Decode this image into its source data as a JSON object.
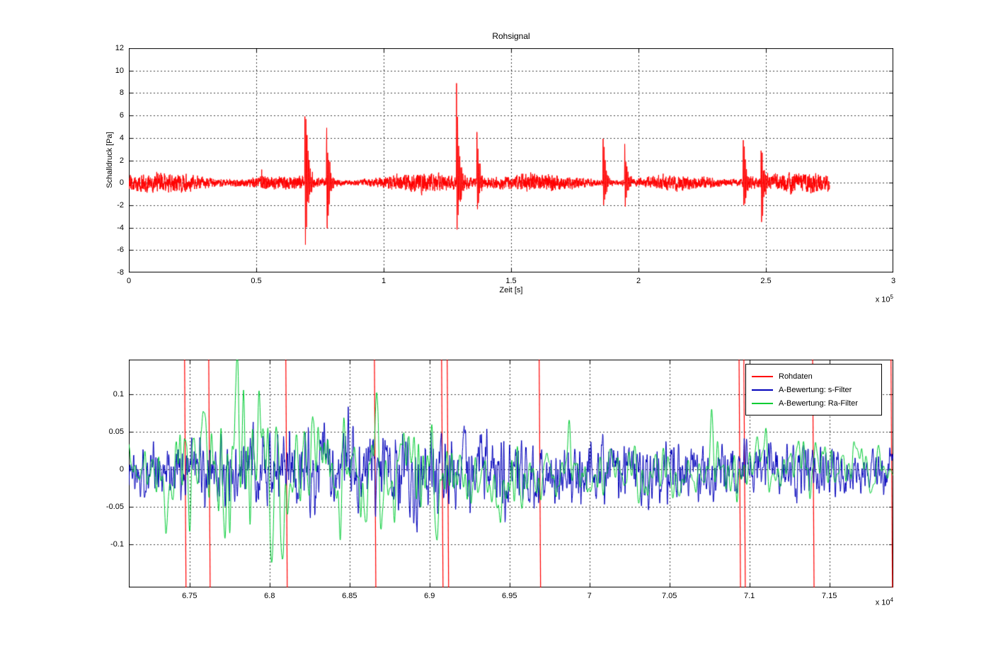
{
  "figure": {
    "background": "#ffffff"
  },
  "chart_data": [
    {
      "type": "line",
      "title": "Rohsignal",
      "xlabel": "Zeit [s]",
      "ylabel": "Schalldruck [Pa]",
      "x_scale_base": "x 10",
      "x_scale_exp": "5",
      "xlim": [
        0,
        300000
      ],
      "ylim": [
        -8,
        12
      ],
      "xticks": [
        0,
        50000,
        100000,
        150000,
        200000,
        250000,
        300000
      ],
      "xtick_labels": [
        "0",
        "0.5",
        "1",
        "1.5",
        "2",
        "2.5",
        "3"
      ],
      "yticks": [
        -8,
        -6,
        -4,
        -2,
        0,
        2,
        4,
        6,
        8,
        10,
        12
      ],
      "ytick_labels": [
        "-8",
        "-6",
        "-4",
        "-2",
        "0",
        "2",
        "4",
        "6",
        "8",
        "10",
        "12"
      ],
      "grid": true,
      "series": [
        {
          "name": "Rohsignal",
          "color": "#ff0000",
          "x_start": 0,
          "x_end": 275000,
          "noise_amplitude": 0.35,
          "bursts": [
            {
              "x": 52000,
              "pos": 1.2,
              "neg": 1.1,
              "tau": 900,
              "period": 450
            },
            {
              "x": 69000,
              "pos": 10.2,
              "neg": 7.8,
              "tau": 1100,
              "period": 420
            },
            {
              "x": 77500,
              "pos": 6.3,
              "neg": 6.2,
              "tau": 1000,
              "period": 430
            },
            {
              "x": 128500,
              "pos": 9.5,
              "neg": 6.7,
              "tau": 1100,
              "period": 420
            },
            {
              "x": 136500,
              "pos": 5.6,
              "neg": 4.0,
              "tau": 1000,
              "period": 430
            },
            {
              "x": 186000,
              "pos": 5.5,
              "neg": 3.9,
              "tau": 1000,
              "period": 430
            },
            {
              "x": 194500,
              "pos": 4.3,
              "neg": 3.6,
              "tau": 950,
              "period": 430
            },
            {
              "x": 241000,
              "pos": 5.1,
              "neg": 4.3,
              "tau": 1000,
              "period": 430
            },
            {
              "x": 248000,
              "pos": 4.2,
              "neg": 4.5,
              "tau": 1100,
              "period": 430
            }
          ]
        }
      ]
    },
    {
      "type": "line",
      "title": "",
      "xlabel": "",
      "ylabel": "",
      "x_scale_base": "x 10",
      "x_scale_exp": "4",
      "xlim": [
        67120,
        71900
      ],
      "ylim": [
        -0.158,
        0.146
      ],
      "xticks": [
        67500,
        68000,
        68500,
        69000,
        69500,
        70000,
        70500,
        71000,
        71500
      ],
      "xtick_labels": [
        "6.75",
        "6.8",
        "6.85",
        "6.9",
        "6.95",
        "7",
        "7.05",
        "7.1",
        "7.15"
      ],
      "yticks": [
        -0.1,
        -0.05,
        0,
        0.05,
        0.1
      ],
      "ytick_labels": [
        "-0.1",
        "-0.05",
        "0",
        "0.05",
        "0.1"
      ],
      "grid": true,
      "legend_position": "top-right",
      "series": [
        {
          "name": "Rohdaten",
          "color": "#ff0000",
          "style": "clipped-spikes",
          "spike_x": [
            67473,
            67624,
            68106,
            68660,
            69080,
            69115,
            69690,
            70940,
            70970,
            71400,
            71890
          ]
        },
        {
          "name": "A-Bewertung: s-Filter",
          "color": "#0000bb",
          "style": "noise",
          "seed": 1337,
          "smooth_window": 3,
          "smooth_passes": 2,
          "envelope": [
            [
              67120,
              0.035
            ],
            [
              67500,
              0.05
            ],
            [
              68200,
              0.062
            ],
            [
              68800,
              0.07
            ],
            [
              69300,
              0.058
            ],
            [
              69800,
              0.05
            ],
            [
              70500,
              0.052
            ],
            [
              71000,
              0.045
            ],
            [
              71890,
              0.032
            ]
          ]
        },
        {
          "name": "A-Bewertung: Ra-Filter",
          "color": "#00cc33",
          "style": "noise",
          "seed": 2024,
          "smooth_window": 7,
          "smooth_passes": 3,
          "envelope": [
            [
              67120,
              0.045
            ],
            [
              67350,
              0.09
            ],
            [
              67700,
              0.125
            ],
            [
              68200,
              0.115
            ],
            [
              68500,
              0.105
            ],
            [
              68900,
              0.085
            ],
            [
              69400,
              0.06
            ],
            [
              70000,
              0.05
            ],
            [
              70800,
              0.048
            ],
            [
              71890,
              0.04
            ]
          ]
        }
      ]
    }
  ]
}
